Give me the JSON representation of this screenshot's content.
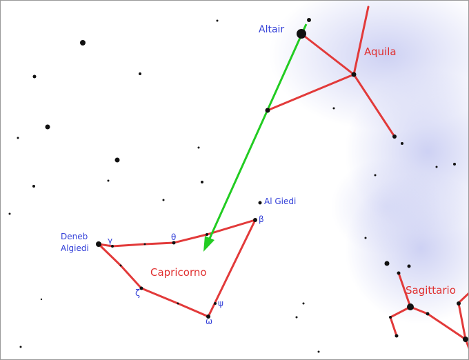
{
  "labels": {
    "altair": "Altair",
    "aquila": "Aquila",
    "al_giedi": "Al Giedi",
    "beta": "β",
    "deneb": "Deneb",
    "algiedi": "Algiedi",
    "gamma": "γ",
    "theta": "θ",
    "capricorno": "Capricorno",
    "zeta": "ζ",
    "psi": "ψ",
    "omega": "ω",
    "sagittario": "Sagittario"
  }
}
